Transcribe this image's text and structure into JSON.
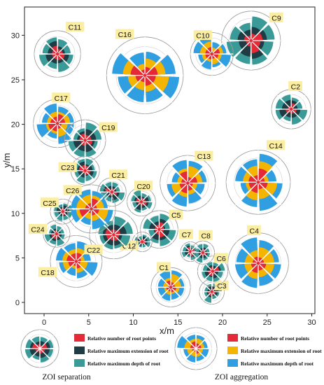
{
  "chart_data": {
    "type": "scatter",
    "xlabel": "x/m",
    "ylabel": "y/m",
    "xlim": [
      -2,
      31
    ],
    "ylim": [
      -1,
      32
    ],
    "xticks": [
      "0",
      "5",
      "10",
      "15",
      "20",
      "25",
      "30"
    ],
    "yticks": [
      "0",
      "5",
      "10",
      "15",
      "20",
      "25",
      "30"
    ],
    "colors": {
      "points": "#e32a36",
      "sep_extension": "#1f3b44",
      "sep_depth": "#3a9a98",
      "agg_extension": "#f4b400",
      "agg_depth": "#2f9fe2",
      "label_bg": "#fbeea0"
    },
    "clumps": [
      {
        "name": "C1",
        "x": 14.2,
        "y": 1.7,
        "r": 2.2,
        "type": "aggregation"
      },
      {
        "name": "C2",
        "x": 27.7,
        "y": 21.7,
        "r": 2.2,
        "type": "separation"
      },
      {
        "name": "C3",
        "x": 18.8,
        "y": 1.2,
        "r": 1.4,
        "type": "separation"
      },
      {
        "name": "C4",
        "x": 24.0,
        "y": 4.4,
        "r": 3.4,
        "type": "aggregation"
      },
      {
        "name": "C5",
        "x": 12.9,
        "y": 8.2,
        "r": 2.1,
        "type": "separation"
      },
      {
        "name": "C6",
        "x": 18.9,
        "y": 3.5,
        "r": 1.7,
        "type": "separation"
      },
      {
        "name": "C7",
        "x": 16.4,
        "y": 5.7,
        "r": 1.1,
        "type": "separation"
      },
      {
        "name": "C8",
        "x": 17.8,
        "y": 5.6,
        "r": 1.3,
        "type": "separation"
      },
      {
        "name": "C9",
        "x": 23.2,
        "y": 29.4,
        "r": 3.3,
        "type": "separation"
      },
      {
        "name": "C10",
        "x": 18.8,
        "y": 27.9,
        "r": 2.4,
        "type": "aggregation"
      },
      {
        "name": "C11",
        "x": 1.5,
        "y": 27.9,
        "r": 2.6,
        "type": "separation"
      },
      {
        "name": "C12",
        "x": 11.0,
        "y": 6.8,
        "r": 1.1,
        "type": "separation"
      },
      {
        "name": "C13",
        "x": 16.1,
        "y": 13.4,
        "r": 3.1,
        "type": "aggregation"
      },
      {
        "name": "C14",
        "x": 24.0,
        "y": 13.5,
        "r": 3.6,
        "type": "aggregation"
      },
      {
        "name": "C16",
        "x": 11.3,
        "y": 25.5,
        "r": 4.3,
        "type": "aggregation"
      },
      {
        "name": "C17",
        "x": 1.5,
        "y": 20.1,
        "r": 2.7,
        "type": "aggregation"
      },
      {
        "name": "C18",
        "x": 3.6,
        "y": 4.6,
        "r": 2.9,
        "type": "aggregation"
      },
      {
        "name": "C19",
        "x": 4.6,
        "y": 18.2,
        "r": 2.3,
        "type": "separation"
      },
      {
        "name": "C20",
        "x": 10.9,
        "y": 11.3,
        "r": 1.6,
        "type": "separation"
      },
      {
        "name": "C21",
        "x": 7.6,
        "y": 12.4,
        "r": 1.6,
        "type": "separation"
      },
      {
        "name": "C22",
        "x": 7.8,
        "y": 7.6,
        "r": 2.7,
        "type": "separation"
      },
      {
        "name": "C23",
        "x": 4.6,
        "y": 14.8,
        "r": 1.6,
        "type": "separation"
      },
      {
        "name": "C24",
        "x": 1.4,
        "y": 7.7,
        "r": 1.5,
        "type": "separation"
      },
      {
        "name": "C25",
        "x": 2.1,
        "y": 10.2,
        "r": 1.4,
        "type": "separation"
      },
      {
        "name": "C26",
        "x": 5.3,
        "y": 10.5,
        "r": 2.7,
        "type": "aggregation"
      }
    ],
    "legend": [
      {
        "title": "ZOI separation",
        "items": [
          "Relative number of root points",
          "Relative maximum extension of root",
          "Relative maximum depth of root"
        ]
      },
      {
        "title": "ZOI aggregation",
        "items": [
          "Relative number of root points",
          "Relative maximum extension of root",
          "Relative maximum depth of root"
        ]
      }
    ]
  }
}
